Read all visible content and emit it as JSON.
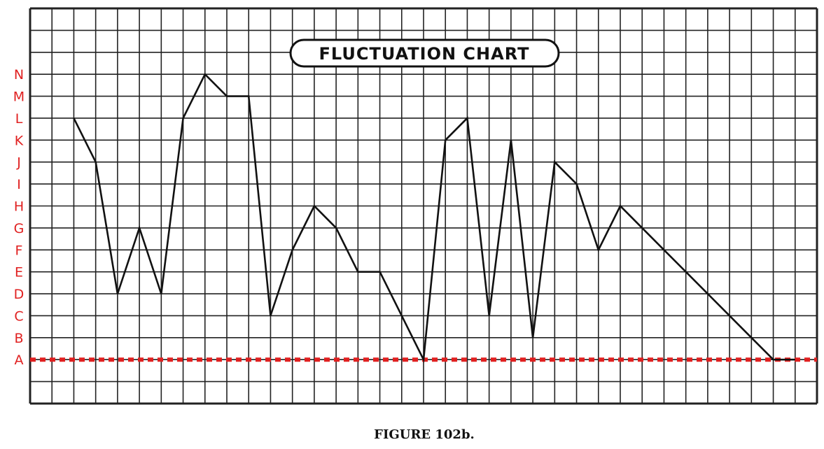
{
  "chart_data": {
    "type": "line",
    "title": "FLUCTUATION CHART",
    "caption": "FIGURE 102b.",
    "y_levels": [
      "A",
      "B",
      "C",
      "D",
      "E",
      "F",
      "G",
      "H",
      "I",
      "J",
      "K",
      "L",
      "M",
      "N"
    ],
    "ylim": [
      "A",
      "N"
    ],
    "grid": true,
    "x": [
      1,
      2,
      3,
      4,
      5,
      6,
      7,
      8,
      9,
      10,
      11,
      12,
      13,
      14,
      15,
      16,
      17,
      18,
      19,
      20,
      21,
      22,
      23,
      24,
      25,
      26,
      27,
      28,
      29,
      30,
      31,
      32,
      33,
      34
    ],
    "values": [
      "L",
      "J",
      "D",
      "G",
      "D",
      "L",
      "N",
      "M",
      "M",
      "C",
      "F",
      "H",
      "G",
      "E",
      "E",
      "C",
      "A",
      "K",
      "L",
      "C",
      "K",
      "B",
      "J",
      "I",
      "F",
      "H",
      "G",
      "F",
      "E",
      "D",
      "C",
      "B",
      "A",
      "A"
    ],
    "reference_line": {
      "level": "A",
      "color": "#e02020",
      "style": "dashed"
    },
    "colors": {
      "line": "#111111",
      "grid": "#222222",
      "labels": "#e02020"
    }
  }
}
